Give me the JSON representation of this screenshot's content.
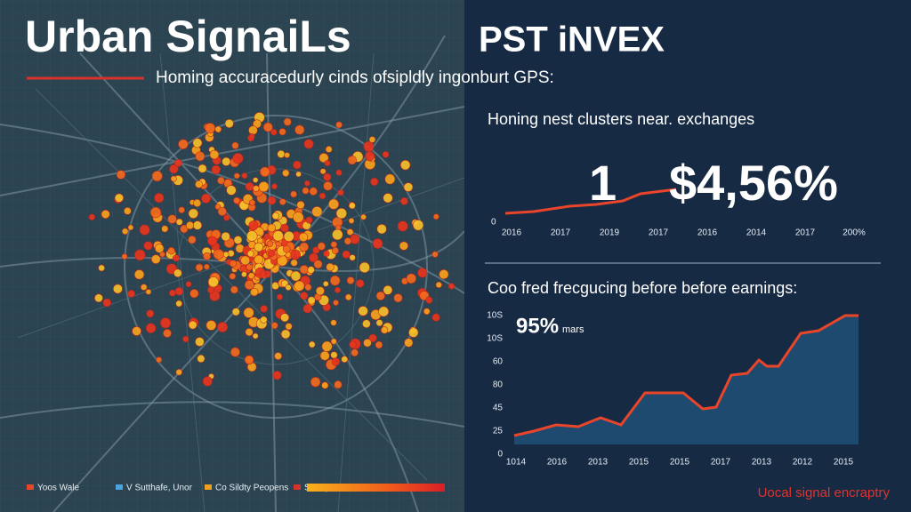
{
  "header": {
    "title": "Urban SignaiLs",
    "title_suffix": "PST iNVEX",
    "subtitle": "Homing accuracedurly cinds ofsipldly ingonburt GPS:"
  },
  "map_legend": [
    "Yoos Wale",
    "V Sutthafe, Unor",
    "Co Sildty Peopens",
    "Sitidlip"
  ],
  "panel_top": {
    "heading": "Honing nest clusters near. exchanges",
    "big_number": "1",
    "big_value": "$4,56%",
    "y_label": "0",
    "x_labels": [
      "2016",
      "2017",
      "2019",
      "2017",
      "2016",
      "2014",
      "2017",
      "200%"
    ]
  },
  "panel_bottom": {
    "heading": "Coo fred frecgucing before before earnings:",
    "callout": "95%",
    "callout_note": "mars",
    "y_labels": [
      "10S",
      "10S",
      "60",
      "80",
      "45",
      "25",
      "0"
    ],
    "x_labels": [
      "1014",
      "2016",
      "2013",
      "2015",
      "2015",
      "2017",
      "2013",
      "2012",
      "2015"
    ]
  },
  "footer": "Uocal signal encraptry"
}
